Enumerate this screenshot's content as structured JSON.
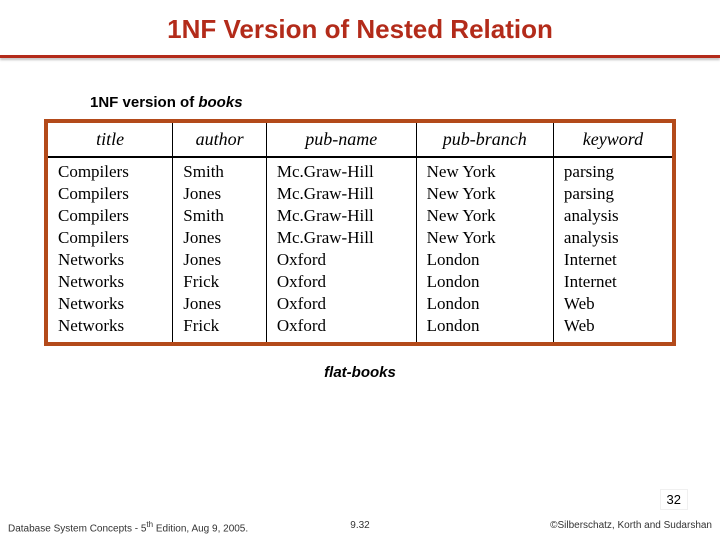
{
  "title": "1NF Version of Nested Relation",
  "title_color": "#b32b1a",
  "subtitle_prefix": "1NF version of ",
  "subtitle_italic": "books",
  "table": {
    "border_color": "#b34a1a",
    "header_font": "italic serif",
    "columns": [
      "title",
      "author",
      "pub-name",
      "pub-branch",
      "keyword"
    ],
    "col_widths_pct": [
      20,
      15,
      24,
      22,
      19
    ],
    "rows": [
      [
        "Compilers",
        "Smith",
        "Mc.Graw-Hill",
        "New York",
        "parsing"
      ],
      [
        "Compilers",
        "Jones",
        "Mc.Graw-Hill",
        "New York",
        "parsing"
      ],
      [
        "Compilers",
        "Smith",
        "Mc.Graw-Hill",
        "New York",
        "analysis"
      ],
      [
        "Compilers",
        "Jones",
        "Mc.Graw-Hill",
        "New York",
        "analysis"
      ],
      [
        "Networks",
        "Jones",
        "Oxford",
        "London",
        "Internet"
      ],
      [
        "Networks",
        "Frick",
        "Oxford",
        "London",
        "Internet"
      ],
      [
        "Networks",
        "Jones",
        "Oxford",
        "London",
        "Web"
      ],
      [
        "Networks",
        "Frick",
        "Oxford",
        "London",
        "Web"
      ]
    ]
  },
  "caption": "flat-books",
  "page_number": "32",
  "footer": {
    "left_a": "Database System Concepts - 5",
    "left_sup": "th",
    "left_b": " Edition, Aug 9, 2005.",
    "mid": "9.32",
    "right": "©Silberschatz, Korth and Sudarshan"
  },
  "background_color": "#ffffff"
}
